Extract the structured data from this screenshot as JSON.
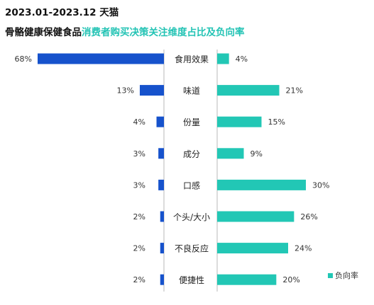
{
  "header": {
    "period": "2023.01-2023.12 天猫",
    "category": "骨骼健康保健食品",
    "subtitle": "消费者购买决策关注维度占比及负向率"
  },
  "colors": {
    "left_bar": "#1652cc",
    "right_bar": "#22c7b5",
    "axis_line": "#b8b8b8",
    "title_teal": "#22c3b4"
  },
  "legend": {
    "label": "负向率"
  },
  "chart_data": {
    "type": "bar",
    "categories": [
      "食用效果",
      "味道",
      "份量",
      "成分",
      "口感",
      "个头/大小",
      "不良反应",
      "便捷性"
    ],
    "series": [
      {
        "values": [
          68,
          13,
          4,
          3,
          3,
          2,
          2,
          2
        ],
        "labels": [
          "68%",
          "13%",
          "4%",
          "3%",
          "3%",
          "2%",
          "2%",
          "2%"
        ]
      },
      {
        "name": "负向率",
        "values": [
          4,
          21,
          15,
          9,
          30,
          26,
          24,
          20
        ],
        "labels": [
          "4%",
          "21%",
          "15%",
          "9%",
          "30%",
          "26%",
          "24%",
          "20%"
        ]
      }
    ]
  }
}
